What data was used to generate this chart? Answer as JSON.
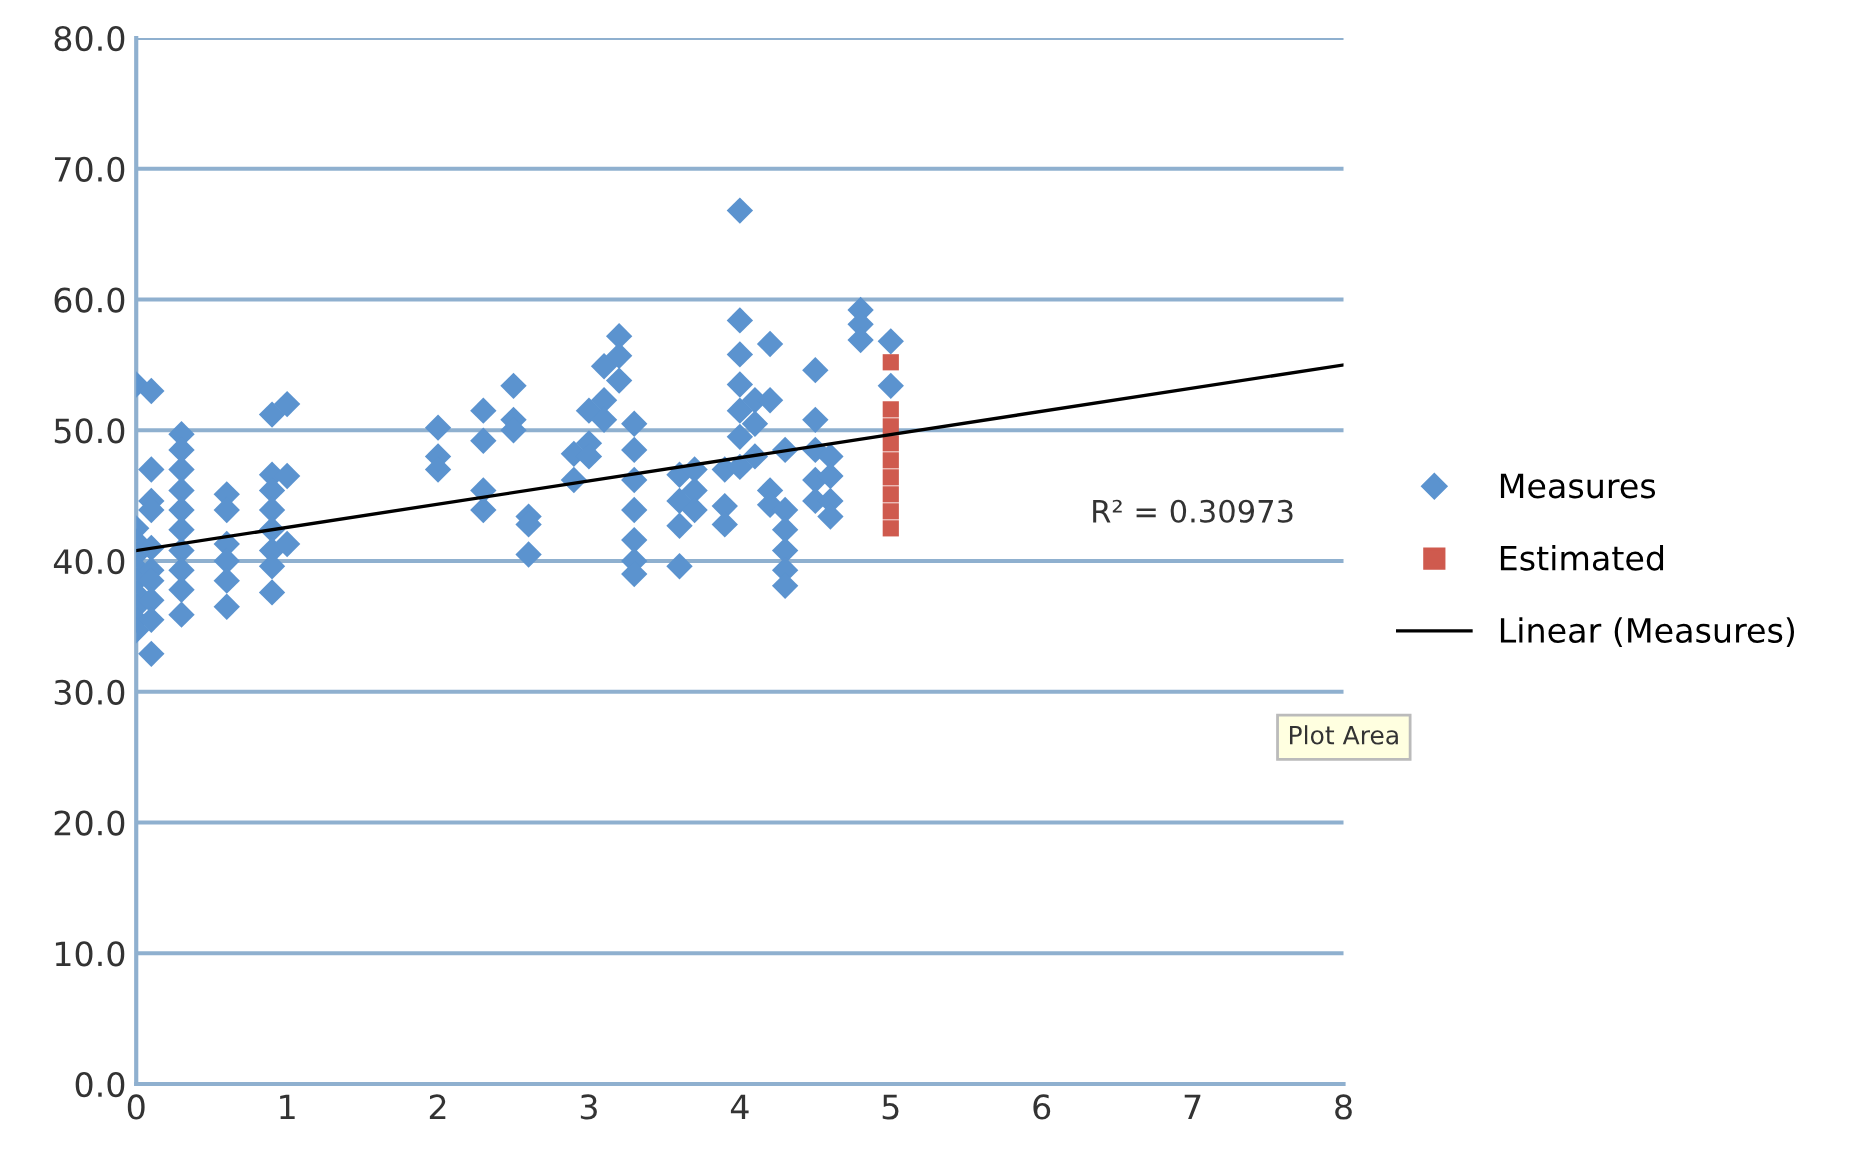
{
  "chart_data": {
    "type": "scatter",
    "xlim": [
      0,
      8
    ],
    "xticks": [
      0,
      1,
      2,
      3,
      4,
      5,
      6,
      7,
      8
    ],
    "ylim": [
      0,
      80
    ],
    "yticks": [
      {
        "value": 0,
        "label": "0.0"
      },
      {
        "value": 10,
        "label": "10.0"
      },
      {
        "value": 20,
        "label": "20.0"
      },
      {
        "value": 30,
        "label": "30.0"
      },
      {
        "value": 40,
        "label": "40.0"
      },
      {
        "value": 50,
        "label": "50.0"
      },
      {
        "value": 60,
        "label": "60.0"
      },
      {
        "value": 70,
        "label": "70.0"
      },
      {
        "value": 80,
        "label": "80.0"
      }
    ],
    "grid": "y",
    "legend": "right",
    "series": [
      {
        "name": "Measures",
        "marker": "diamond",
        "color": "#5b93cf",
        "x": [
          0,
          0,
          0,
          0,
          0,
          0,
          0,
          0,
          0,
          0,
          0.1,
          0.1,
          0.1,
          0.1,
          0.1,
          0.1,
          0.1,
          0.1,
          0.1,
          0.1,
          0.3,
          0.3,
          0.3,
          0.3,
          0.3,
          0.3,
          0.3,
          0.3,
          0.3,
          0.3,
          0.6,
          0.6,
          0.6,
          0.6,
          0.6,
          0.6,
          0.9,
          0.9,
          0.9,
          0.9,
          0.9,
          0.9,
          0.9,
          0.9,
          1.0,
          1.0,
          1.0,
          2.0,
          2.0,
          2.0,
          2.3,
          2.3,
          2.3,
          2.3,
          2.5,
          2.5,
          2.5,
          2.6,
          2.6,
          2.6,
          2.9,
          2.9,
          3.0,
          3.0,
          3.0,
          3.1,
          3.1,
          3.1,
          3.2,
          3.2,
          3.2,
          3.3,
          3.3,
          3.3,
          3.3,
          3.3,
          3.3,
          3.3,
          3.6,
          3.6,
          3.6,
          3.6,
          3.7,
          3.7,
          3.7,
          3.9,
          3.9,
          3.9,
          4.0,
          4.0,
          4.0,
          4.0,
          4.0,
          4.0,
          4.0,
          4.1,
          4.1,
          4.1,
          4.2,
          4.2,
          4.2,
          4.2,
          4.3,
          4.3,
          4.3,
          4.3,
          4.3,
          4.3,
          4.5,
          4.5,
          4.5,
          4.5,
          4.5,
          4.6,
          4.6,
          4.6,
          4.6,
          4.8,
          4.8,
          4.8,
          5.0,
          5.0
        ],
        "values": [
          53.5,
          42.5,
          41.5,
          40.5,
          39.5,
          38.5,
          37.5,
          36.5,
          35.5,
          34.7,
          53,
          47,
          44.6,
          43.9,
          41,
          39.3,
          38.5,
          37,
          35.5,
          32.9,
          49.7,
          48.5,
          47,
          45.4,
          43.9,
          42.4,
          40.8,
          39.3,
          37.8,
          35.9,
          45.1,
          43.9,
          41.3,
          40,
          38.5,
          36.5,
          51.2,
          46.6,
          45.4,
          43.9,
          42.4,
          40.8,
          39.6,
          37.6,
          52,
          46.5,
          41.3,
          50.2,
          48,
          47,
          51.5,
          49.2,
          45.4,
          43.9,
          53.4,
          50.8,
          50,
          43.4,
          42.8,
          40.5,
          48.2,
          46.2,
          51.5,
          49,
          48,
          54.9,
          52.3,
          50.8,
          57.2,
          55.7,
          53.8,
          50.5,
          48.5,
          46.2,
          43.9,
          41.6,
          40,
          39,
          46.6,
          44.6,
          42.7,
          39.6,
          47,
          45.4,
          43.9,
          47,
          44.2,
          42.8,
          66.8,
          58.4,
          55.8,
          53.5,
          51.5,
          49.5,
          47.2,
          52.3,
          50.5,
          48,
          56.6,
          52.3,
          45.4,
          44.3,
          48.5,
          43.9,
          42.4,
          40.8,
          39.3,
          38.1,
          54.6,
          50.8,
          48.5,
          46.2,
          44.6,
          48,
          46.5,
          44.6,
          43.4,
          59.2,
          58.1,
          56.9,
          56.8,
          53.4
        ]
      },
      {
        "name": "Estimated",
        "marker": "square",
        "color": "#cf5a4e",
        "x": [
          5,
          5,
          5,
          5,
          5,
          5,
          5,
          5,
          5
        ],
        "values": [
          55.2,
          51.6,
          50.3,
          49.0,
          47.7,
          46.4,
          45.1,
          43.8,
          42.5
        ]
      },
      {
        "name": "Linear (Measures)",
        "type": "line",
        "line_style": "solid",
        "color": "#000000",
        "x": [
          0,
          8
        ],
        "values": [
          40.8,
          55.0
        ]
      }
    ],
    "annotations": [
      "R² = 0.30973",
      "Plot Area"
    ]
  }
}
